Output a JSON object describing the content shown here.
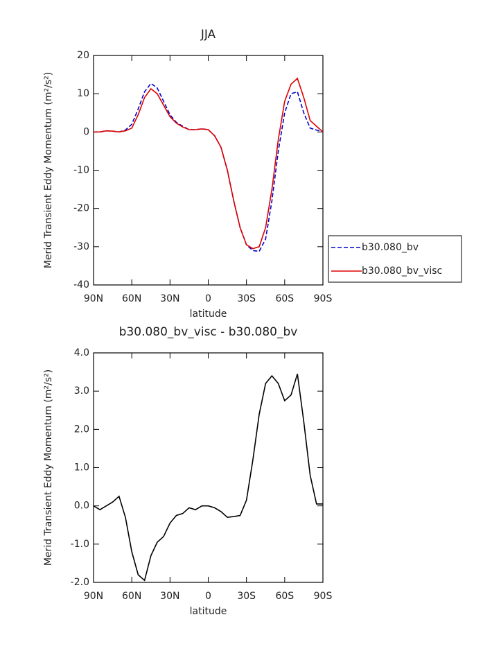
{
  "chart_data": [
    {
      "type": "line",
      "title": "JJA",
      "xlabel": "latitude",
      "ylabel": "Merid Transient Eddy Momentum (m²/s²)",
      "x": [
        90,
        85,
        80,
        75,
        70,
        65,
        60,
        55,
        50,
        45,
        40,
        35,
        30,
        25,
        20,
        15,
        10,
        5,
        0,
        -5,
        -10,
        -15,
        -20,
        -25,
        -30,
        -35,
        -40,
        -45,
        -50,
        -55,
        -60,
        -65,
        -70,
        -75,
        -80,
        -85,
        -90
      ],
      "series": [
        {
          "name": "b30.080_bv",
          "color": "#0000cc",
          "dash": true,
          "values": [
            0,
            0,
            0.3,
            0.2,
            0,
            0.5,
            2,
            6,
            10.5,
            12.7,
            11.5,
            8,
            4.5,
            2.5,
            1.5,
            0.6,
            0.6,
            0.8,
            0.6,
            -1,
            -4,
            -10,
            -18,
            -25,
            -29.5,
            -31,
            -31.2,
            -28,
            -18,
            -5,
            5,
            10,
            10.5,
            5,
            1,
            0.5,
            0
          ]
        },
        {
          "name": "b30.080_bv_visc",
          "color": "#dd0000",
          "dash": false,
          "values": [
            0,
            0,
            0.3,
            0.2,
            0,
            0.3,
            1,
            4.5,
            9,
            11.3,
            10,
            7,
            4,
            2.3,
            1.3,
            0.6,
            0.6,
            0.8,
            0.6,
            -1,
            -4,
            -10,
            -18,
            -25,
            -29.5,
            -30.5,
            -30,
            -25,
            -15,
            -2,
            8,
            12.5,
            14,
            9,
            3,
            1.5,
            0
          ]
        }
      ],
      "xlim": [
        90,
        -90
      ],
      "xticks": [
        {
          "value": 90,
          "label": "90N"
        },
        {
          "value": 60,
          "label": "60N"
        },
        {
          "value": 30,
          "label": "30N"
        },
        0,
        {
          "value": -30,
          "label": "30S"
        },
        {
          "value": -60,
          "label": "60S"
        },
        {
          "value": -90,
          "label": "90S"
        }
      ],
      "ylim": [
        -40,
        20
      ],
      "yticks": [
        -40,
        -30,
        -20,
        -10,
        0,
        10,
        20
      ],
      "legend": "right"
    },
    {
      "type": "line",
      "title": "b30.080_bv_visc - b30.080_bv",
      "xlabel": "latitude",
      "ylabel": "Merid Transient Eddy Momentum (m²/s²)",
      "x": [
        90,
        85,
        80,
        75,
        70,
        65,
        60,
        55,
        50,
        45,
        40,
        35,
        30,
        25,
        20,
        15,
        10,
        5,
        0,
        -5,
        -10,
        -15,
        -20,
        -25,
        -30,
        -35,
        -40,
        -45,
        -50,
        -55,
        -60,
        -65,
        -70,
        -75,
        -80,
        -85,
        -90
      ],
      "series": [
        {
          "color": "#000000",
          "dash": false,
          "values": [
            0,
            -0.1,
            0,
            0.1,
            0.25,
            -0.3,
            -1.2,
            -1.8,
            -1.95,
            -1.3,
            -0.95,
            -0.8,
            -0.45,
            -0.25,
            -0.2,
            -0.05,
            -0.1,
            0,
            0,
            -0.05,
            -0.15,
            -0.3,
            -0.28,
            -0.25,
            0.15,
            1.2,
            2.4,
            3.2,
            3.4,
            3.2,
            2.75,
            2.9,
            3.45,
            2.2,
            0.8,
            0.05,
            0.05
          ]
        }
      ],
      "xlim": [
        90,
        -90
      ],
      "xticks": [
        {
          "value": 90,
          "label": "90N"
        },
        {
          "value": 60,
          "label": "60N"
        },
        {
          "value": 30,
          "label": "30N"
        },
        0,
        {
          "value": -30,
          "label": "30S"
        },
        {
          "value": -60,
          "label": "60S"
        },
        {
          "value": -90,
          "label": "90S"
        }
      ],
      "ylim": [
        -2,
        4
      ],
      "yticks": [
        {
          "value": -2,
          "label": "-2.0"
        },
        {
          "value": -1,
          "label": "-1.0"
        },
        {
          "value": 0,
          "label": "0.0"
        },
        {
          "value": 1,
          "label": "1.0"
        },
        {
          "value": 2,
          "label": "2.0"
        },
        {
          "value": 3,
          "label": "3.0"
        },
        {
          "value": 4,
          "label": "4.0"
        }
      ]
    }
  ]
}
